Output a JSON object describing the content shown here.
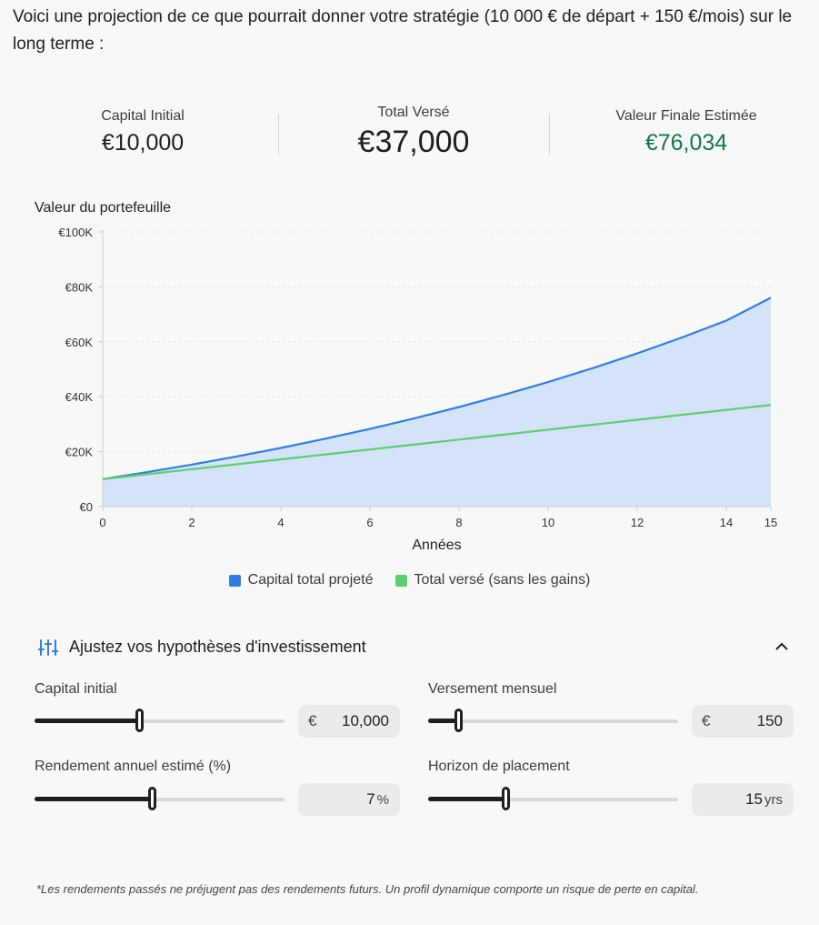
{
  "intro": "Voici une projection de ce que pourrait donner votre stratégie (10 000 € de départ + 150 €/mois) sur le long terme :",
  "stats": [
    {
      "label": "Capital Initial",
      "value": "€10,000"
    },
    {
      "label": "Total Versé",
      "value": "€37,000"
    },
    {
      "label": "Valeur Finale Estimée",
      "value": "€76,034"
    }
  ],
  "chart_data": {
    "type": "area",
    "ylabel": "Valeur du portefeuille",
    "xlabel": "Années",
    "x": [
      0,
      1,
      2,
      3,
      4,
      5,
      6,
      7,
      8,
      9,
      10,
      11,
      12,
      13,
      14,
      15
    ],
    "xticks": [
      0,
      2,
      4,
      6,
      8,
      10,
      12,
      14,
      15
    ],
    "ylim": [
      0,
      100000
    ],
    "yticks": [
      {
        "value": 0,
        "label": "€0"
      },
      {
        "value": 20000,
        "label": "€20K"
      },
      {
        "value": 40000,
        "label": "€40K"
      },
      {
        "value": 60000,
        "label": "€60K"
      },
      {
        "value": 80000,
        "label": "€80K"
      },
      {
        "value": 100000,
        "label": "€100K"
      }
    ],
    "grid": true,
    "legend_position": "bottom",
    "series": [
      {
        "name": "Capital total projeté",
        "color": "#2f7fe3",
        "fill": "#d4e3f8",
        "values": [
          10000,
          12559,
          15298,
          18228,
          21363,
          24718,
          28307,
          32148,
          36258,
          40655,
          45360,
          50395,
          55782,
          61546,
          67714,
          76034
        ]
      },
      {
        "name": "Total versé (sans les gains)",
        "color": "#5ccf6e",
        "values": [
          10000,
          11800,
          13600,
          15400,
          17200,
          19000,
          20800,
          22600,
          24400,
          26200,
          28000,
          29800,
          31600,
          33400,
          35200,
          37000
        ]
      }
    ]
  },
  "adjust": {
    "title": "Ajustez vos hypothèses d'investissement",
    "icon": "tune-icon",
    "collapse_icon": "chevron-up-icon"
  },
  "params": {
    "capital": {
      "label": "Capital initial",
      "prefix": "€",
      "value": "10,000",
      "fraction": 0.42
    },
    "versement": {
      "label": "Versement mensuel",
      "prefix": "€",
      "value": "150",
      "fraction": 0.12
    },
    "rendement": {
      "label": "Rendement annuel estimé (%)",
      "value": "7",
      "unit": "%",
      "fraction": 0.47
    },
    "horizon": {
      "label": "Horizon de placement",
      "value": "15",
      "unit": "yrs",
      "fraction": 0.31
    }
  },
  "disclaimer": "*Les rendements passés ne préjugent pas des rendements futurs. Un profil dynamique comporte un risque de perte en capital."
}
